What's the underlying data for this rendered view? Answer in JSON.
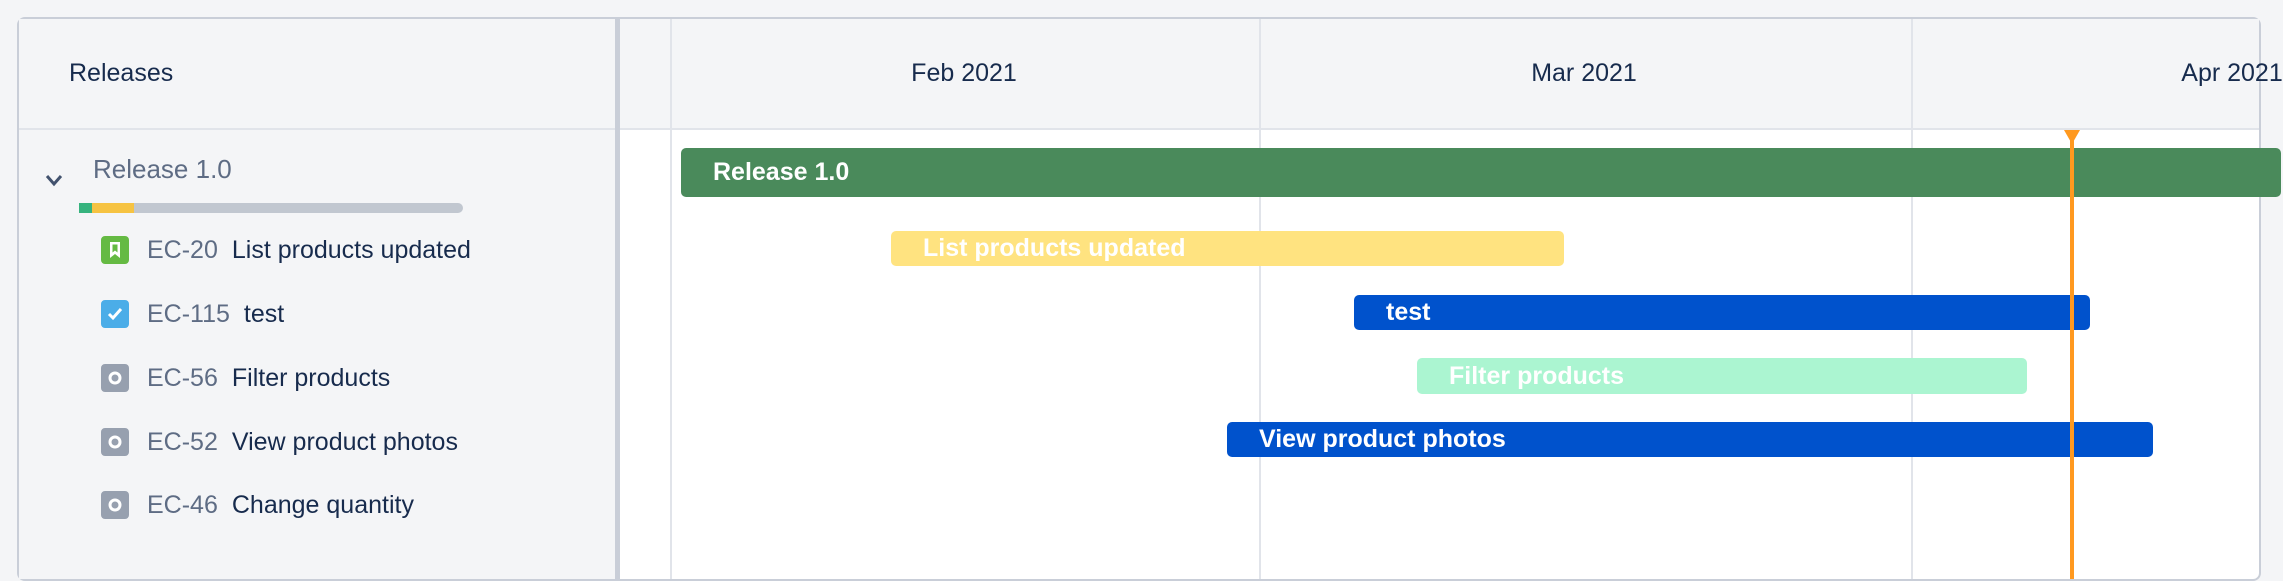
{
  "sidebar": {
    "header": "Releases",
    "release": {
      "name": "Release 1.0",
      "progress": {
        "done_percent": 3.3,
        "in_progress_percent": 11.1
      }
    },
    "items": [
      {
        "key": "EC-20",
        "title": "List products updated",
        "icon": "story-icon",
        "icon_color": "#65ba43"
      },
      {
        "key": "EC-115",
        "title": "test",
        "icon": "task-checkbox-icon",
        "icon_color": "#4bade8"
      },
      {
        "key": "EC-56",
        "title": "Filter products",
        "icon": "subtask-icon",
        "icon_color": "#97a0af"
      },
      {
        "key": "EC-52",
        "title": "View product photos",
        "icon": "subtask-icon",
        "icon_color": "#97a0af"
      },
      {
        "key": "EC-46",
        "title": "Change quantity",
        "icon": "subtask-icon",
        "icon_color": "#97a0af"
      }
    ]
  },
  "timeline": {
    "months": [
      "Feb 2021",
      "Mar 2021",
      "Apr 2021"
    ],
    "bars": [
      {
        "label": "Release 1.0",
        "color": "#4a8a5b"
      },
      {
        "label": "List products updated",
        "color": "#ffe380"
      },
      {
        "label": "test",
        "color": "#0052cc"
      },
      {
        "label": "Filter products",
        "color": "#abf5d1"
      },
      {
        "label": "View product photos",
        "color": "#0052cc"
      }
    ],
    "today_marker_color": "#ff991f"
  }
}
